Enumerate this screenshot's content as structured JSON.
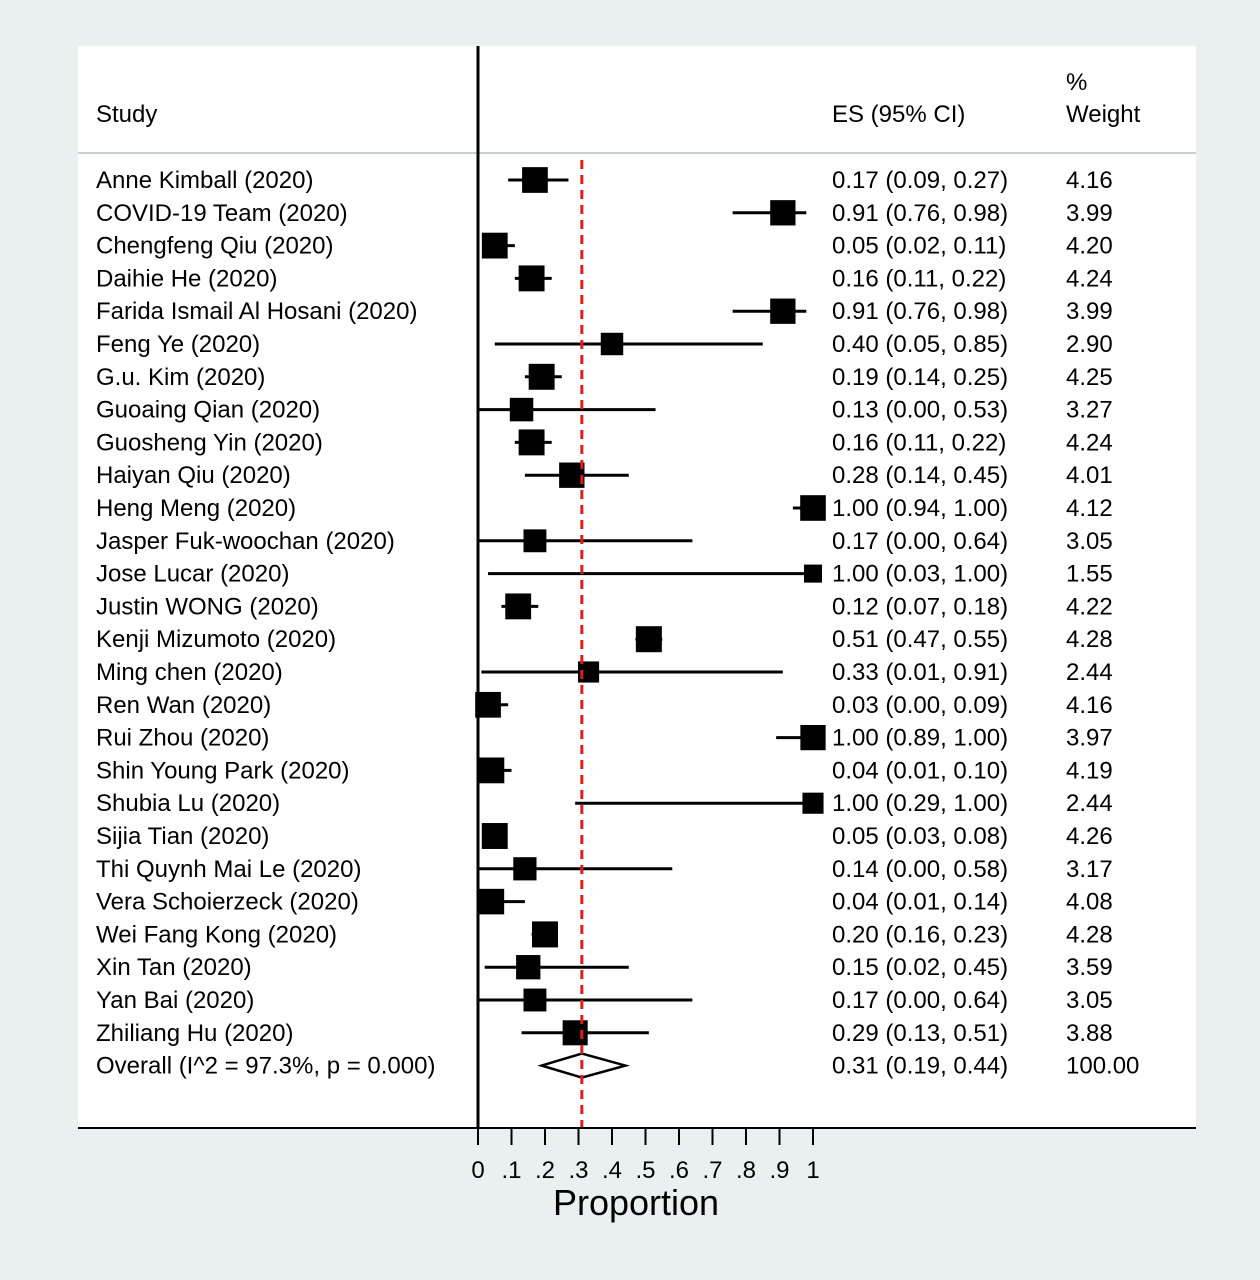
{
  "chart_data": {
    "type": "forest",
    "headers": {
      "study": "Study",
      "es": "ES (95% CI)",
      "weight_top": "%",
      "weight_bottom": "Weight"
    },
    "xlabel": "Proportion",
    "xlim": [
      0,
      1
    ],
    "x_ticks": [
      {
        "value": 0,
        "label": "0"
      },
      {
        "value": 0.1,
        "label": ".1"
      },
      {
        "value": 0.2,
        "label": ".2"
      },
      {
        "value": 0.3,
        "label": ".3"
      },
      {
        "value": 0.4,
        "label": ".4"
      },
      {
        "value": 0.5,
        "label": ".5"
      },
      {
        "value": 0.6,
        "label": ".6"
      },
      {
        "value": 0.7,
        "label": ".7"
      },
      {
        "value": 0.8,
        "label": ".8"
      },
      {
        "value": 0.9,
        "label": ".9"
      },
      {
        "value": 1,
        "label": "1"
      }
    ],
    "reference_line": 0.31,
    "studies": [
      {
        "study": "Anne Kimball (2020)",
        "es": 0.17,
        "lo": 0.09,
        "hi": 0.27,
        "es_text": "0.17 (0.09, 0.27)",
        "weight": 4.16,
        "weight_text": "4.16"
      },
      {
        "study": "COVID-19 Team (2020)",
        "es": 0.91,
        "lo": 0.76,
        "hi": 0.98,
        "es_text": "0.91 (0.76, 0.98)",
        "weight": 3.99,
        "weight_text": "3.99"
      },
      {
        "study": "Chengfeng Qiu (2020)",
        "es": 0.05,
        "lo": 0.02,
        "hi": 0.11,
        "es_text": "0.05 (0.02, 0.11)",
        "weight": 4.2,
        "weight_text": "4.20"
      },
      {
        "study": "Daihie He (2020)",
        "es": 0.16,
        "lo": 0.11,
        "hi": 0.22,
        "es_text": "0.16 (0.11, 0.22)",
        "weight": 4.24,
        "weight_text": "4.24"
      },
      {
        "study": "Farida Ismail Al Hosani (2020)",
        "es": 0.91,
        "lo": 0.76,
        "hi": 0.98,
        "es_text": "0.91 (0.76, 0.98)",
        "weight": 3.99,
        "weight_text": "3.99"
      },
      {
        "study": "Feng Ye (2020)",
        "es": 0.4,
        "lo": 0.05,
        "hi": 0.85,
        "es_text": "0.40 (0.05, 0.85)",
        "weight": 2.9,
        "weight_text": "2.90"
      },
      {
        "study": "G.u. Kim (2020)",
        "es": 0.19,
        "lo": 0.14,
        "hi": 0.25,
        "es_text": "0.19 (0.14, 0.25)",
        "weight": 4.25,
        "weight_text": "4.25"
      },
      {
        "study": "Guoaing Qian (2020)",
        "es": 0.13,
        "lo": 0.0,
        "hi": 0.53,
        "es_text": "0.13 (0.00, 0.53)",
        "weight": 3.27,
        "weight_text": "3.27"
      },
      {
        "study": "Guosheng Yin (2020)",
        "es": 0.16,
        "lo": 0.11,
        "hi": 0.22,
        "es_text": "0.16 (0.11, 0.22)",
        "weight": 4.24,
        "weight_text": "4.24"
      },
      {
        "study": "Haiyan Qiu (2020)",
        "es": 0.28,
        "lo": 0.14,
        "hi": 0.45,
        "es_text": "0.28 (0.14, 0.45)",
        "weight": 4.01,
        "weight_text": "4.01"
      },
      {
        "study": "Heng Meng (2020)",
        "es": 1.0,
        "lo": 0.94,
        "hi": 1.0,
        "es_text": "1.00 (0.94, 1.00)",
        "weight": 4.12,
        "weight_text": "4.12"
      },
      {
        "study": "Jasper Fuk-woochan (2020)",
        "es": 0.17,
        "lo": 0.0,
        "hi": 0.64,
        "es_text": "0.17 (0.00, 0.64)",
        "weight": 3.05,
        "weight_text": "3.05"
      },
      {
        "study": "Jose Lucar (2020)",
        "es": 1.0,
        "lo": 0.03,
        "hi": 1.0,
        "es_text": "1.00 (0.03, 1.00)",
        "weight": 1.55,
        "weight_text": "1.55"
      },
      {
        "study": "Justin WONG (2020)",
        "es": 0.12,
        "lo": 0.07,
        "hi": 0.18,
        "es_text": "0.12 (0.07, 0.18)",
        "weight": 4.22,
        "weight_text": "4.22"
      },
      {
        "study": "Kenji Mizumoto (2020)",
        "es": 0.51,
        "lo": 0.47,
        "hi": 0.55,
        "es_text": "0.51 (0.47, 0.55)",
        "weight": 4.28,
        "weight_text": "4.28"
      },
      {
        "study": "Ming chen (2020)",
        "es": 0.33,
        "lo": 0.01,
        "hi": 0.91,
        "es_text": "0.33 (0.01, 0.91)",
        "weight": 2.44,
        "weight_text": "2.44"
      },
      {
        "study": "Ren Wan (2020)",
        "es": 0.03,
        "lo": 0.0,
        "hi": 0.09,
        "es_text": "0.03 (0.00, 0.09)",
        "weight": 4.16,
        "weight_text": "4.16"
      },
      {
        "study": "Rui Zhou (2020)",
        "es": 1.0,
        "lo": 0.89,
        "hi": 1.0,
        "es_text": "1.00 (0.89, 1.00)",
        "weight": 3.97,
        "weight_text": "3.97"
      },
      {
        "study": "Shin Young Park (2020)",
        "es": 0.04,
        "lo": 0.01,
        "hi": 0.1,
        "es_text": "0.04 (0.01, 0.10)",
        "weight": 4.19,
        "weight_text": "4.19"
      },
      {
        "study": "Shubia Lu (2020)",
        "es": 1.0,
        "lo": 0.29,
        "hi": 1.0,
        "es_text": "1.00 (0.29, 1.00)",
        "weight": 2.44,
        "weight_text": "2.44"
      },
      {
        "study": "Sijia Tian (2020)",
        "es": 0.05,
        "lo": 0.03,
        "hi": 0.08,
        "es_text": "0.05 (0.03, 0.08)",
        "weight": 4.26,
        "weight_text": "4.26"
      },
      {
        "study": "Thi Quynh Mai Le (2020)",
        "es": 0.14,
        "lo": 0.0,
        "hi": 0.58,
        "es_text": "0.14 (0.00, 0.58)",
        "weight": 3.17,
        "weight_text": "3.17"
      },
      {
        "study": "Vera Schoierzeck (2020)",
        "es": 0.04,
        "lo": 0.01,
        "hi": 0.14,
        "es_text": "0.04 (0.01, 0.14)",
        "weight": 4.08,
        "weight_text": "4.08"
      },
      {
        "study": "Wei Fang Kong (2020)",
        "es": 0.2,
        "lo": 0.16,
        "hi": 0.23,
        "es_text": "0.20 (0.16, 0.23)",
        "weight": 4.28,
        "weight_text": "4.28"
      },
      {
        "study": "Xin Tan (2020)",
        "es": 0.15,
        "lo": 0.02,
        "hi": 0.45,
        "es_text": "0.15 (0.02, 0.45)",
        "weight": 3.59,
        "weight_text": "3.59"
      },
      {
        "study": "Yan Bai (2020)",
        "es": 0.17,
        "lo": 0.0,
        "hi": 0.64,
        "es_text": "0.17 (0.00, 0.64)",
        "weight": 3.05,
        "weight_text": "3.05"
      },
      {
        "study": "Zhiliang Hu (2020)",
        "es": 0.29,
        "lo": 0.13,
        "hi": 0.51,
        "es_text": "0.29 (0.13, 0.51)",
        "weight": 3.88,
        "weight_text": "3.88"
      }
    ],
    "overall": {
      "label": "Overall  (I^2 = 97.3%, p = 0.000)",
      "es": 0.31,
      "lo": 0.19,
      "hi": 0.44,
      "es_text": "0.31 (0.19, 0.44)",
      "weight": 100.0,
      "weight_text": "100.00"
    },
    "colors": {
      "background": "#e9f0ef",
      "panel": "#ffffff",
      "marker": "#000000",
      "reference_line": "#e01b1b",
      "separator": "#c8cfcf"
    }
  }
}
